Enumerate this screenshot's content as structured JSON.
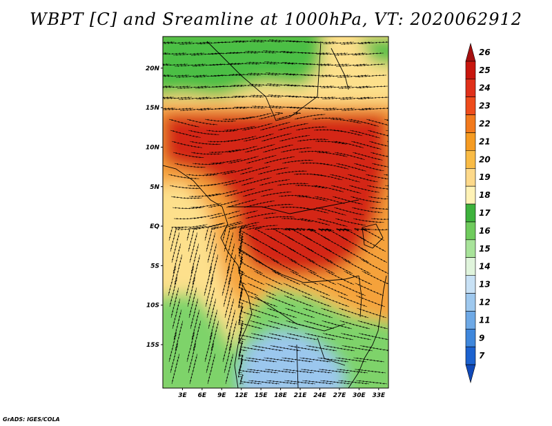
{
  "title": "WBPT [C] and Sreamline at 1000hPa, VT: 2020062912",
  "credit": "GrADS: IGES/COLA",
  "map": {
    "lon_range": [
      0,
      34.5
    ],
    "lat_range": [
      -20.5,
      24
    ],
    "lat_ticks": [
      "20N",
      "15N",
      "10N",
      "5N",
      "EQ",
      "5S",
      "10S",
      "15S"
    ],
    "lat_values": [
      20,
      15,
      10,
      5,
      0,
      -5,
      -10,
      -15
    ],
    "lon_ticks": [
      "3E",
      "6E",
      "9E",
      "12E",
      "15E",
      "18E",
      "21E",
      "24E",
      "27E",
      "30E",
      "33E"
    ],
    "lon_values": [
      3,
      6,
      9,
      12,
      15,
      18,
      21,
      24,
      27,
      30,
      33
    ],
    "field_zones": [
      {
        "label": "green-northwest",
        "color": "#4cbf45"
      },
      {
        "label": "yellow-sahel",
        "color": "#fde08c"
      },
      {
        "label": "red-core",
        "color": "#d42617"
      },
      {
        "label": "orange-gulf",
        "color": "#f5a23a"
      },
      {
        "label": "green-southern",
        "color": "#7ed36b"
      },
      {
        "label": "blue-southern",
        "color": "#9bc7ee"
      }
    ]
  },
  "colorbar": {
    "levels": [
      "26",
      "25",
      "24",
      "23",
      "22",
      "21",
      "20",
      "19",
      "18",
      "17",
      "16",
      "15",
      "14",
      "13",
      "12",
      "11",
      "9",
      "7"
    ],
    "colors": [
      "#a50f0f",
      "#c8160e",
      "#e0301a",
      "#ee4c1c",
      "#f27a1d",
      "#f59b22",
      "#f9bb45",
      "#fdd98a",
      "#fff2b6",
      "#3db23c",
      "#6fcb5d",
      "#a8e39a",
      "#e0f4dc",
      "#c8e1f5",
      "#9ec8ee",
      "#6ea9e6",
      "#3f87dc",
      "#1c62cf",
      "#1049b8"
    ]
  }
}
